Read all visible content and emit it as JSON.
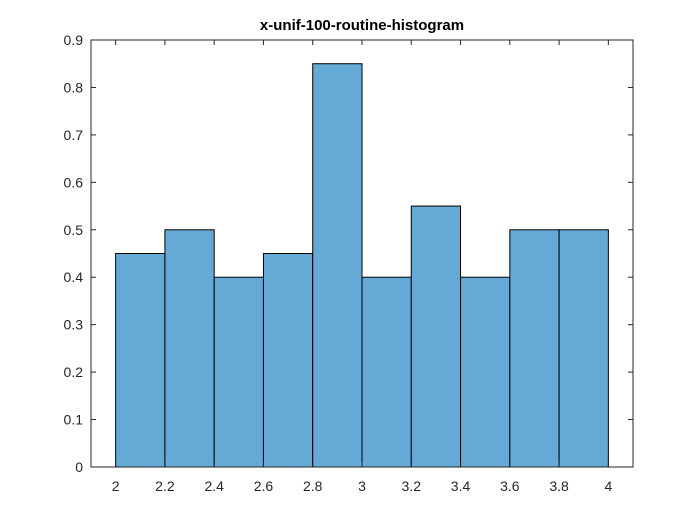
{
  "chart_data": {
    "type": "bar",
    "title": "x-unif-100-routine-histogram",
    "xlabel": "",
    "ylabel": "",
    "bin_edges": [
      2.0,
      2.2,
      2.4,
      2.6,
      2.8,
      3.0,
      3.2,
      3.4,
      3.6,
      3.8,
      4.0
    ],
    "values": [
      0.45,
      0.5,
      0.4,
      0.45,
      0.85,
      0.4,
      0.55,
      0.4,
      0.5,
      0.5
    ],
    "xlim": [
      1.9,
      4.1
    ],
    "ylim": [
      0,
      0.9
    ],
    "xticks": [
      2,
      2.2,
      2.4,
      2.6,
      2.8,
      3,
      3.2,
      3.4,
      3.6,
      3.8,
      4
    ],
    "xtick_labels": [
      "2",
      "2.2",
      "2.4",
      "2.6",
      "2.8",
      "3",
      "3.2",
      "3.4",
      "3.6",
      "3.8",
      "4"
    ],
    "yticks": [
      0,
      0.1,
      0.2,
      0.3,
      0.4,
      0.5,
      0.6,
      0.7,
      0.8,
      0.9
    ],
    "ytick_labels": [
      "0",
      "0.1",
      "0.2",
      "0.3",
      "0.4",
      "0.5",
      "0.6",
      "0.7",
      "0.8",
      "0.9"
    ],
    "grid": false,
    "legend": "none",
    "colors": {
      "bar_fill": "#65a9d7",
      "bar_edge": "#000000",
      "axis": "#262626",
      "background": "#ffffff"
    }
  }
}
